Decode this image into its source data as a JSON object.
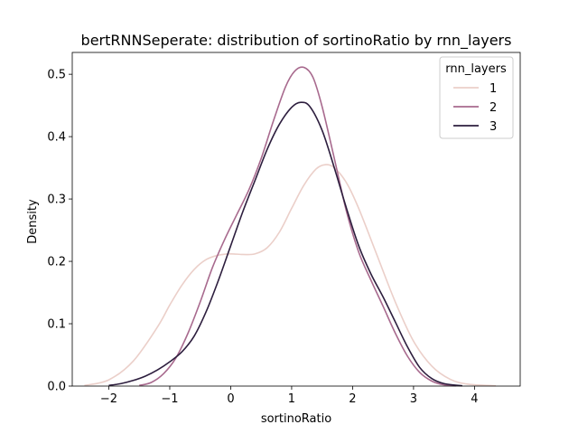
{
  "chart_data": {
    "type": "line",
    "title": "bertRNNSeperate: distribution of sortinoRatio by rnn_layers",
    "xlabel": "sortinoRatio",
    "ylabel": "Density",
    "xlim": [
      -2.6,
      4.75
    ],
    "ylim": [
      0,
      0.535
    ],
    "x_ticks": [
      -2,
      -1,
      0,
      1,
      2,
      3,
      4
    ],
    "y_ticks": [
      0.0,
      0.1,
      0.2,
      0.3,
      0.4,
      0.5
    ],
    "x_tick_labels": [
      "−2",
      "−1",
      "0",
      "1",
      "2",
      "3",
      "4"
    ],
    "y_tick_labels": [
      "0.0",
      "0.1",
      "0.2",
      "0.3",
      "0.4",
      "0.5"
    ],
    "grid": false,
    "legend": {
      "title": "rnn_layers",
      "placement": "top-right"
    },
    "series": [
      {
        "name": "1",
        "color": "#ebcfc9",
        "points": [
          [
            -2.4,
            0.001
          ],
          [
            -2.0,
            0.01
          ],
          [
            -1.6,
            0.04
          ],
          [
            -1.2,
            0.095
          ],
          [
            -1.0,
            0.13
          ],
          [
            -0.8,
            0.162
          ],
          [
            -0.6,
            0.187
          ],
          [
            -0.4,
            0.203
          ],
          [
            -0.2,
            0.21
          ],
          [
            0.0,
            0.212
          ],
          [
            0.2,
            0.211
          ],
          [
            0.4,
            0.212
          ],
          [
            0.6,
            0.222
          ],
          [
            0.8,
            0.247
          ],
          [
            1.0,
            0.285
          ],
          [
            1.2,
            0.322
          ],
          [
            1.4,
            0.348
          ],
          [
            1.55,
            0.355
          ],
          [
            1.7,
            0.35
          ],
          [
            1.9,
            0.326
          ],
          [
            2.1,
            0.285
          ],
          [
            2.4,
            0.21
          ],
          [
            2.7,
            0.135
          ],
          [
            3.0,
            0.072
          ],
          [
            3.3,
            0.032
          ],
          [
            3.6,
            0.011
          ],
          [
            3.9,
            0.003
          ],
          [
            4.35,
            0.0005
          ]
        ]
      },
      {
        "name": "2",
        "color": "#a86a8e",
        "points": [
          [
            -1.5,
            0.001
          ],
          [
            -1.3,
            0.006
          ],
          [
            -1.1,
            0.02
          ],
          [
            -0.9,
            0.045
          ],
          [
            -0.7,
            0.085
          ],
          [
            -0.5,
            0.135
          ],
          [
            -0.3,
            0.19
          ],
          [
            -0.1,
            0.235
          ],
          [
            0.1,
            0.275
          ],
          [
            0.3,
            0.315
          ],
          [
            0.5,
            0.365
          ],
          [
            0.7,
            0.425
          ],
          [
            0.9,
            0.48
          ],
          [
            1.05,
            0.505
          ],
          [
            1.2,
            0.511
          ],
          [
            1.35,
            0.495
          ],
          [
            1.5,
            0.448
          ],
          [
            1.7,
            0.365
          ],
          [
            1.9,
            0.28
          ],
          [
            2.1,
            0.215
          ],
          [
            2.3,
            0.17
          ],
          [
            2.5,
            0.128
          ],
          [
            2.7,
            0.085
          ],
          [
            2.9,
            0.048
          ],
          [
            3.1,
            0.022
          ],
          [
            3.3,
            0.008
          ],
          [
            3.5,
            0.002
          ],
          [
            3.7,
            0.0005
          ]
        ]
      },
      {
        "name": "3",
        "color": "#2d1e3e",
        "points": [
          [
            -2.0,
            0.001
          ],
          [
            -1.8,
            0.004
          ],
          [
            -1.6,
            0.009
          ],
          [
            -1.4,
            0.016
          ],
          [
            -1.2,
            0.026
          ],
          [
            -1.0,
            0.039
          ],
          [
            -0.8,
            0.055
          ],
          [
            -0.6,
            0.08
          ],
          [
            -0.4,
            0.12
          ],
          [
            -0.2,
            0.17
          ],
          [
            0.0,
            0.225
          ],
          [
            0.2,
            0.28
          ],
          [
            0.4,
            0.33
          ],
          [
            0.6,
            0.38
          ],
          [
            0.8,
            0.42
          ],
          [
            1.0,
            0.447
          ],
          [
            1.15,
            0.455
          ],
          [
            1.3,
            0.448
          ],
          [
            1.5,
            0.41
          ],
          [
            1.7,
            0.35
          ],
          [
            1.9,
            0.285
          ],
          [
            2.1,
            0.225
          ],
          [
            2.3,
            0.18
          ],
          [
            2.5,
            0.143
          ],
          [
            2.7,
            0.103
          ],
          [
            2.9,
            0.063
          ],
          [
            3.1,
            0.03
          ],
          [
            3.3,
            0.012
          ],
          [
            3.5,
            0.004
          ],
          [
            3.8,
            0.0005
          ]
        ]
      }
    ]
  }
}
